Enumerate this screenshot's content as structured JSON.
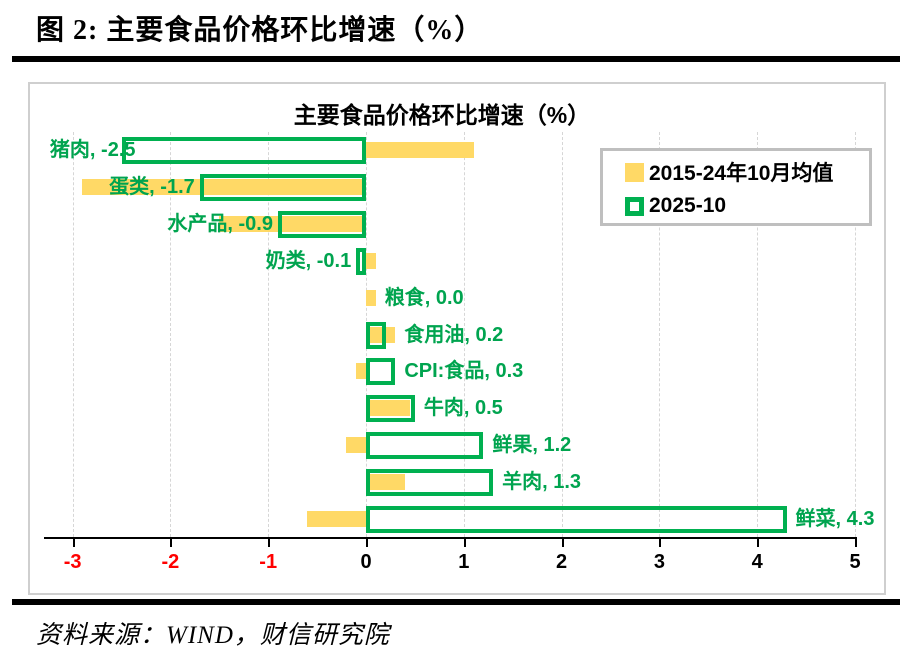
{
  "header": {
    "title": "图 2:  主要食品价格环比增速（%）"
  },
  "source": {
    "text": "资料来源：WIND，财信研究院"
  },
  "legend": {
    "items": [
      {
        "label": "2015-24年10月均值",
        "swatch": "yellow-filled-square"
      },
      {
        "label": "2025-10",
        "swatch": "green-outlined-square"
      }
    ]
  },
  "colors": {
    "series_avg": "#FFD966",
    "series_current": "#00B050",
    "negative_axis_label": "#FF0000",
    "gridline": "#d6d6d6",
    "legend_border": "#bfbfbf"
  },
  "chart_data": {
    "type": "bar",
    "orientation": "horizontal",
    "title": "主要食品价格环比增速（%）",
    "categories": [
      "猪肉",
      "蛋类",
      "水产品",
      "奶类",
      "粮食",
      "食用油",
      "CPI:食品",
      "牛肉",
      "鲜果",
      "羊肉",
      "鲜菜"
    ],
    "series": [
      {
        "name": "2015-24年10月均值",
        "style": "filled",
        "color": "#FFD966",
        "values": [
          1.1,
          -2.9,
          -1.5,
          0.1,
          0.1,
          0.3,
          -0.1,
          0.45,
          -0.2,
          0.4,
          -0.6
        ]
      },
      {
        "name": "2025-10",
        "style": "outlined",
        "color": "#00B050",
        "values": [
          -2.5,
          -1.7,
          -0.9,
          -0.1,
          0.0,
          0.2,
          0.3,
          0.5,
          1.2,
          1.3,
          4.3
        ]
      }
    ],
    "data_labels": [
      "猪肉, -2.5",
      "蛋类, -1.7",
      "水产品, -0.9",
      "奶类, -0.1",
      "粮食, 0.0",
      "食用油, 0.2",
      "CPI:食品, 0.3",
      "牛肉, 0.5",
      "鲜果, 1.2",
      "羊肉, 1.3",
      "鲜菜, 4.3"
    ],
    "xlim": [
      -3,
      5
    ],
    "x_ticks": [
      -3,
      -2,
      -1,
      0,
      1,
      2,
      3,
      4,
      5
    ],
    "grid": "vertical-dashed",
    "legend_position": "upper-right"
  }
}
